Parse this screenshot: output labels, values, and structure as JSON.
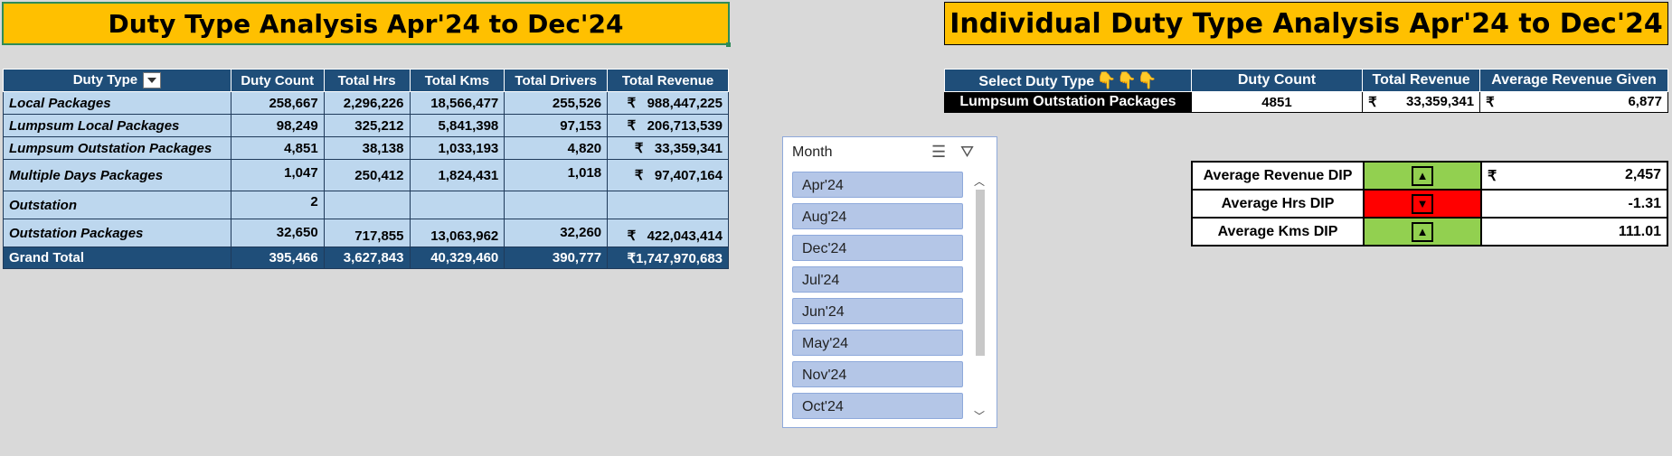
{
  "banners": {
    "left": "Duty Type Analysis Apr'24 to Dec'24",
    "right": "Individual Duty Type Analysis Apr'24 to Dec'24"
  },
  "pivot": {
    "headers": [
      "Duty Type",
      "Duty Count",
      "Total Hrs",
      "Total Kms",
      "Total Drivers",
      "Total Revenue"
    ],
    "currency": "₹",
    "rows": [
      {
        "type": "Local Packages",
        "count": "258,667",
        "hrs": "2,296,226",
        "kms": "18,566,477",
        "drivers": "255,526",
        "revenue": "988,447,225"
      },
      {
        "type": "Lumpsum Local Packages",
        "count": "98,249",
        "hrs": "325,212",
        "kms": "5,841,398",
        "drivers": "97,153",
        "revenue": "206,713,539"
      },
      {
        "type": "Lumpsum Outstation Packages",
        "count": "4,851",
        "hrs": "38,138",
        "kms": "1,033,193",
        "drivers": "4,820",
        "revenue": "33,359,341"
      },
      {
        "type": "Multiple Days Packages",
        "count": "1,047",
        "hrs": "250,412",
        "kms": "1,824,431",
        "drivers": "1,018",
        "revenue": "97,407,164"
      },
      {
        "type": "Outstation",
        "count": "2",
        "hrs": "",
        "kms": "",
        "drivers": "",
        "revenue": ""
      },
      {
        "type": "Outstation Packages",
        "count": "32,650",
        "hrs": "717,855",
        "kms": "13,063,962",
        "drivers": "32,260",
        "revenue": "422,043,414"
      }
    ],
    "grand_total": {
      "type": "Grand Total",
      "count": "395,466",
      "hrs": "3,627,843",
      "kms": "40,329,460",
      "drivers": "390,777",
      "revenue": "₹1,747,970,683"
    }
  },
  "slicer": {
    "title": "Month",
    "items": [
      "Apr'24",
      "Aug'24",
      "Dec'24",
      "Jul'24",
      "Jun'24",
      "May'24",
      "Nov'24",
      "Oct'24"
    ],
    "multiselect_icon": "multi-select-icon",
    "clear_filter_icon": "clear-filter-icon"
  },
  "detail": {
    "headers": [
      "Select Duty Type",
      "Duty Count",
      "Total Revenue",
      "Average Revenue Given"
    ],
    "hand_icon": "👇👇👇",
    "selected_type": "Lumpsum Outstation Packages",
    "count": "4851",
    "currency": "₹",
    "total_revenue": "33,359,341",
    "avg_revenue": "6,877"
  },
  "dip": {
    "rows": [
      {
        "label": "Average Revenue DIP",
        "arrow": "▲",
        "currency": "₹",
        "value": "2,457",
        "status_color": "#92d050"
      },
      {
        "label": "Average Hrs DIP",
        "arrow": "▼",
        "currency": "",
        "value": "-1.31",
        "status_color": "#ff0000"
      },
      {
        "label": "Average Kms DIP",
        "arrow": "▲",
        "currency": "",
        "value": "111.01",
        "status_color": "#92d050"
      }
    ]
  }
}
